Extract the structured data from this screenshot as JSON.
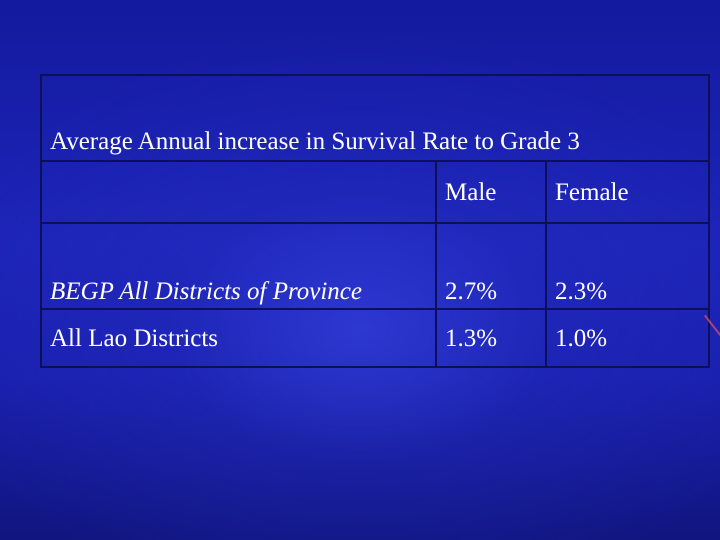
{
  "table": {
    "title": "Average Annual increase in Survival Rate to Grade 3",
    "header": [
      "",
      "Male",
      "Female"
    ],
    "rows": [
      {
        "label": "BEGP All Districts of Province",
        "male": "2.7%",
        "female": "2.3%"
      },
      {
        "label": "All Lao Districts",
        "male": "1.3%",
        "female": "1.0%"
      }
    ]
  },
  "colors": {
    "background": "#1a22b0",
    "text": "#ffffff",
    "border": "#0c1058"
  }
}
